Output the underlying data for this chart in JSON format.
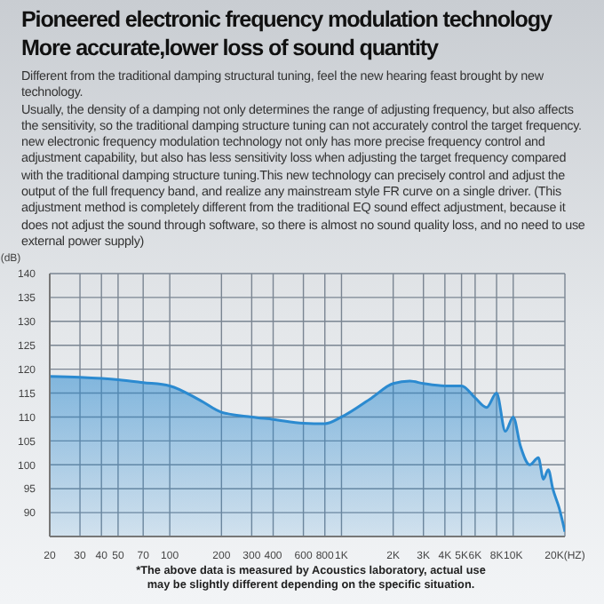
{
  "chart_data": {
    "type": "area",
    "title": "Pioneered electronic frequency modulation technology",
    "subtitle": "More accurate,lower loss of sound quantity",
    "ylabel": "(dB)",
    "x": [
      20,
      30,
      50,
      70,
      100,
      150,
      200,
      300,
      400,
      600,
      800,
      1000,
      1500,
      2000,
      2500,
      3000,
      4000,
      5000,
      6000,
      7000,
      8000,
      9000,
      10000,
      11000,
      12500,
      14000,
      15000,
      16000,
      17000,
      18500,
      20000
    ],
    "values": [
      118.5,
      118.3,
      117.8,
      117.2,
      116.5,
      113.5,
      111,
      110,
      109.5,
      108.7,
      108.6,
      110,
      114,
      117,
      117.5,
      117,
      116.5,
      116.5,
      114,
      112,
      115,
      107,
      110,
      104,
      100,
      101.5,
      97,
      99,
      95,
      91,
      86
    ],
    "color": "#2b8ad0",
    "xlim": [
      20,
      20000
    ],
    "xticks": [
      20,
      30,
      40,
      50,
      70,
      100,
      200,
      300,
      400,
      600,
      800,
      {
        "value": 1000,
        "label": "1K"
      },
      {
        "value": 2000,
        "label": "2K"
      },
      {
        "value": 3000,
        "label": "3K"
      },
      {
        "value": 4000,
        "label": "4K"
      },
      {
        "value": 5000,
        "label": "5K"
      },
      {
        "value": 6000,
        "label": "6K"
      },
      {
        "value": 8000,
        "label": "8K"
      },
      {
        "value": 10000,
        "label": "10K"
      },
      {
        "value": 20000,
        "label": "20K(HZ)"
      }
    ],
    "ylim": [
      85,
      140
    ],
    "yticks": [
      90,
      95,
      100,
      105,
      110,
      115,
      120,
      125,
      130,
      135,
      140
    ],
    "grid": true,
    "log": "x",
    "annotations": [
      "Different from the traditional damping structural tuning, feel the new hearing feast brought by new technology.\nUsually, the density of a damping not only determines the range of adjusting frequency, but also affects the sensitivity, so the traditional damping structure tuning can not accurately control the target frequency. new electronic frequency modulation technology not only has more precise frequency control and adjustment capability, but also has less sensitivity loss when adjusting the target frequency compared with the traditional damping structure tuning.This new technology can precisely control and adjust the output of the full frequency band, and realize any mainstream style FR curve on a single driver. (This adjustment method is completely different from the traditional EQ sound effect adjustment, because it does not adjust the sound through software, so there is almost no sound quality loss, and no need to use external power supply)",
      "*The above data is measured by Acoustics laboratory, actual use may be slightly different depending on the specific situation."
    ]
  }
}
